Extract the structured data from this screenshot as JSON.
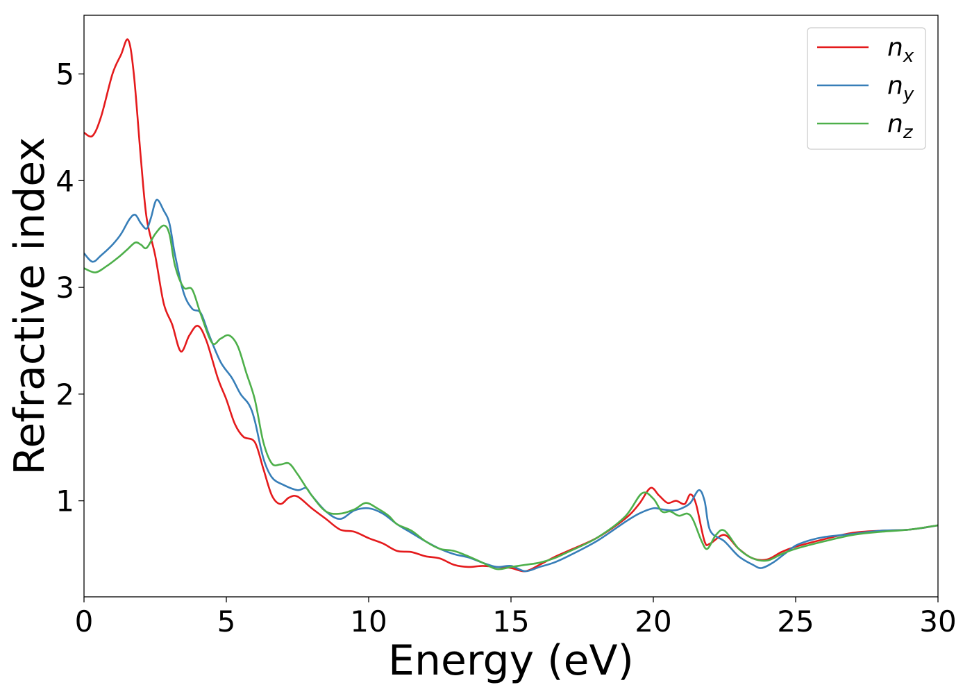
{
  "chart_data": {
    "type": "line",
    "xlabel": "Energy (eV)",
    "ylabel": "Refractive index",
    "xlim": [
      0,
      30
    ],
    "ylim": [
      0.1,
      5.55
    ],
    "xticks": [
      0,
      5,
      10,
      15,
      20,
      25,
      30
    ],
    "yticks": [
      1,
      2,
      3,
      4,
      5
    ],
    "grid": false,
    "legend_position": "top-right",
    "series": [
      {
        "name": "n_x",
        "label_base": "n",
        "label_sub": "x",
        "color": "#e41a1c",
        "x": [
          0,
          0.3,
          0.6,
          1.0,
          1.3,
          1.55,
          1.75,
          2.0,
          2.2,
          2.5,
          2.8,
          3.1,
          3.4,
          3.7,
          4.0,
          4.3,
          4.7,
          5.0,
          5.3,
          5.6,
          6.0,
          6.3,
          6.6,
          6.9,
          7.2,
          7.5,
          8.0,
          8.5,
          9.0,
          9.5,
          10.0,
          10.5,
          11.0,
          11.5,
          12.0,
          12.5,
          13.0,
          13.5,
          14.0,
          14.5,
          15.0,
          15.5,
          16.0,
          16.5,
          17.0,
          18.0,
          19.0,
          19.5,
          19.9,
          20.2,
          20.5,
          20.8,
          21.1,
          21.3,
          21.5,
          21.8,
          22.0,
          22.5,
          23.0,
          23.5,
          24.0,
          24.5,
          25.0,
          26.0,
          27.0,
          28.0,
          29.0,
          30.0
        ],
        "values": [
          4.45,
          4.42,
          4.6,
          5.0,
          5.18,
          5.32,
          5.0,
          4.2,
          3.65,
          3.3,
          2.85,
          2.65,
          2.4,
          2.55,
          2.64,
          2.5,
          2.15,
          1.95,
          1.72,
          1.6,
          1.55,
          1.3,
          1.05,
          0.97,
          1.03,
          1.04,
          0.93,
          0.83,
          0.73,
          0.71,
          0.65,
          0.6,
          0.53,
          0.52,
          0.48,
          0.46,
          0.4,
          0.38,
          0.39,
          0.38,
          0.37,
          0.34,
          0.4,
          0.47,
          0.53,
          0.65,
          0.83,
          0.97,
          1.12,
          1.05,
          0.98,
          1.0,
          0.97,
          1.06,
          0.97,
          0.62,
          0.6,
          0.68,
          0.55,
          0.46,
          0.45,
          0.52,
          0.57,
          0.64,
          0.7,
          0.72,
          0.73,
          0.77
        ]
      },
      {
        "name": "n_y",
        "label_base": "n",
        "label_sub": "y",
        "color": "#377eb8",
        "x": [
          0,
          0.3,
          0.6,
          1.0,
          1.3,
          1.6,
          1.8,
          2.0,
          2.2,
          2.35,
          2.55,
          2.8,
          3.0,
          3.2,
          3.5,
          3.8,
          4.1,
          4.4,
          4.8,
          5.2,
          5.5,
          5.8,
          6.0,
          6.3,
          6.6,
          7.0,
          7.5,
          7.8,
          8.0,
          8.5,
          9.0,
          9.5,
          10.0,
          10.5,
          11.0,
          11.5,
          12.0,
          12.5,
          13.0,
          13.5,
          14.0,
          14.5,
          15.0,
          15.5,
          16.0,
          16.5,
          17.0,
          18.0,
          19.0,
          19.5,
          20.0,
          20.3,
          20.7,
          21.0,
          21.3,
          21.6,
          21.8,
          22.0,
          22.5,
          23.0,
          23.5,
          23.8,
          24.2,
          24.6,
          25.0,
          25.5,
          26.0,
          27.0,
          28.0,
          29.0,
          30.0
        ],
        "values": [
          3.32,
          3.24,
          3.3,
          3.4,
          3.5,
          3.64,
          3.68,
          3.6,
          3.55,
          3.65,
          3.82,
          3.72,
          3.6,
          3.3,
          2.95,
          2.8,
          2.76,
          2.55,
          2.3,
          2.15,
          2.0,
          1.9,
          1.75,
          1.4,
          1.22,
          1.15,
          1.1,
          1.12,
          1.05,
          0.9,
          0.83,
          0.91,
          0.93,
          0.88,
          0.78,
          0.7,
          0.62,
          0.55,
          0.5,
          0.47,
          0.42,
          0.38,
          0.39,
          0.34,
          0.38,
          0.42,
          0.48,
          0.62,
          0.8,
          0.88,
          0.93,
          0.92,
          0.91,
          0.93,
          0.98,
          1.1,
          1.0,
          0.72,
          0.62,
          0.48,
          0.4,
          0.37,
          0.42,
          0.5,
          0.58,
          0.63,
          0.66,
          0.69,
          0.72,
          0.73,
          0.77
        ]
      },
      {
        "name": "n_z",
        "label_base": "n",
        "label_sub": "z",
        "color": "#4daf4a",
        "x": [
          0,
          0.4,
          0.8,
          1.2,
          1.5,
          1.8,
          2.0,
          2.2,
          2.5,
          2.8,
          3.0,
          3.2,
          3.5,
          3.8,
          4.1,
          4.5,
          4.8,
          5.1,
          5.4,
          5.7,
          6.0,
          6.3,
          6.6,
          6.9,
          7.2,
          7.5,
          8.0,
          8.5,
          9.0,
          9.5,
          9.9,
          10.3,
          10.7,
          11.0,
          11.5,
          12.0,
          12.5,
          13.0,
          13.5,
          14.0,
          14.5,
          15.0,
          15.5,
          16.0,
          16.5,
          17.0,
          18.0,
          19.0,
          19.6,
          20.0,
          20.3,
          20.6,
          20.9,
          21.2,
          21.4,
          21.7,
          21.9,
          22.2,
          22.5,
          23.0,
          23.5,
          24.0,
          24.5,
          25.0,
          26.0,
          27.0,
          28.0,
          29.0,
          30.0
        ],
        "values": [
          3.18,
          3.14,
          3.2,
          3.28,
          3.35,
          3.42,
          3.4,
          3.37,
          3.5,
          3.58,
          3.5,
          3.2,
          3.0,
          2.98,
          2.75,
          2.48,
          2.52,
          2.55,
          2.45,
          2.2,
          1.95,
          1.55,
          1.35,
          1.34,
          1.35,
          1.25,
          1.05,
          0.9,
          0.88,
          0.92,
          0.98,
          0.93,
          0.86,
          0.78,
          0.72,
          0.62,
          0.55,
          0.53,
          0.48,
          0.42,
          0.36,
          0.38,
          0.4,
          0.42,
          0.46,
          0.52,
          0.65,
          0.85,
          1.07,
          1.02,
          0.9,
          0.9,
          0.86,
          0.88,
          0.82,
          0.62,
          0.55,
          0.68,
          0.72,
          0.55,
          0.46,
          0.44,
          0.5,
          0.55,
          0.62,
          0.68,
          0.71,
          0.73,
          0.77
        ]
      }
    ]
  }
}
